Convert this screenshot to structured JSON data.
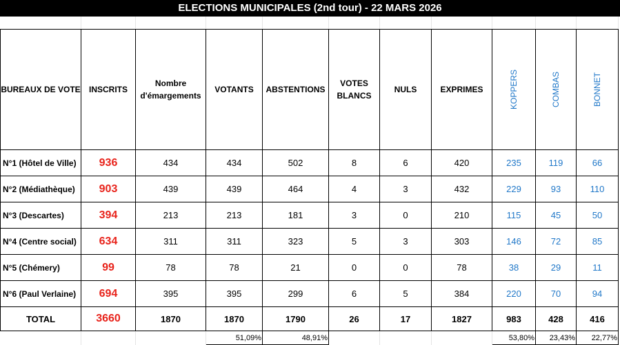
{
  "title": "ELECTIONS MUNICIPALES (2nd tour) - 22 MARS 2026",
  "headers": [
    "BUREAUX DE VOTE",
    "INSCRITS",
    "Nombre d'émargements",
    "VOTANTS",
    "ABSTENTIONS",
    "VOTES BLANCS",
    "NULS",
    "EXPRIMES",
    "KOPPERS",
    "COMBAS",
    "BONNET"
  ],
  "rows": [
    [
      "N°1 (Hôtel de Ville)",
      "936",
      "434",
      "434",
      "502",
      "8",
      "6",
      "420",
      "235",
      "119",
      "66"
    ],
    [
      "N°2 (Médiathèque)",
      "903",
      "439",
      "439",
      "464",
      "4",
      "3",
      "432",
      "229",
      "93",
      "110"
    ],
    [
      "N°3 (Descartes)",
      "394",
      "213",
      "213",
      "181",
      "3",
      "0",
      "210",
      "115",
      "45",
      "50"
    ],
    [
      "N°4 (Centre social)",
      "634",
      "311",
      "311",
      "323",
      "5",
      "3",
      "303",
      "146",
      "72",
      "85"
    ],
    [
      "N°5 (Chémery)",
      "99",
      "78",
      "78",
      "21",
      "0",
      "0",
      "78",
      "38",
      "29",
      "11"
    ],
    [
      "N°6 (Paul Verlaine)",
      "694",
      "395",
      "395",
      "299",
      "6",
      "5",
      "384",
      "220",
      "70",
      "94"
    ]
  ],
  "total": [
    "TOTAL",
    "3660",
    "1870",
    "1870",
    "1790",
    "26",
    "17",
    "1827",
    "983",
    "428",
    "416"
  ],
  "percentages": [
    "",
    "",
    "",
    "51,09%",
    "48,91%",
    "",
    "",
    "",
    "53,80%",
    "23,43%",
    "22,77%"
  ],
  "colors": {
    "inscrits": "#e8231b",
    "candidates": "#1f77c8",
    "title_bg": "#000000"
  }
}
